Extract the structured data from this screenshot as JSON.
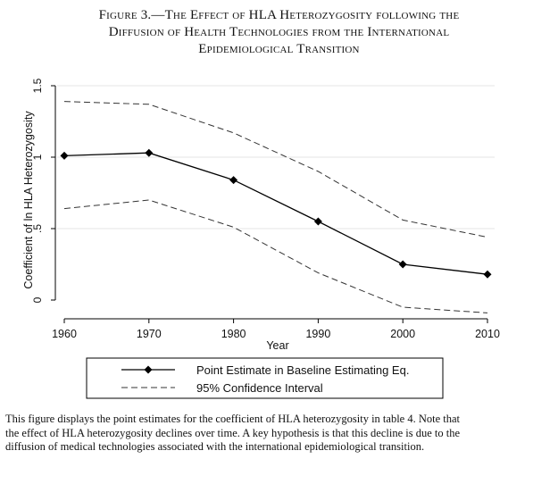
{
  "figure": {
    "title_lines": [
      "Figure 3.—The Effect of HLA Heterozygosity following the",
      "Diffusion of Health Technologies from the International",
      "Epidemiological Transition"
    ],
    "caption_lines": [
      "This figure displays the point estimates for the coefficient of HLA heterozygosity in table 4. Note that",
      "the effect of HLA heterozygosity declines over time. A key hypothesis is that this decline is due to the",
      "diffusion of medical technologies associated with the international epidemiological transition."
    ]
  },
  "chart_data": {
    "type": "line",
    "xlabel": "Year",
    "ylabel": "Coefficient of ln HLA Heterozygosity",
    "x": [
      1960,
      1970,
      1980,
      1990,
      2000,
      2010
    ],
    "x_ticks": [
      "1960",
      "1970",
      "1980",
      "1990",
      "2000",
      "2010"
    ],
    "y_ticks": [
      "0",
      ".5",
      "1",
      "1.5"
    ],
    "y_tick_values": [
      0,
      0.5,
      1,
      1.5
    ],
    "xlim": [
      1960,
      2010
    ],
    "ylim": [
      0,
      1.5
    ],
    "grid": true,
    "legend_position": "bottom",
    "series": [
      {
        "name": "Point Estimate in Baseline Estimating Eq.",
        "style": "solid-diamond",
        "color": "#000000",
        "values": [
          1.01,
          1.03,
          0.84,
          0.55,
          0.25,
          0.18
        ]
      },
      {
        "name": "95% Confidence Interval",
        "style": "dashed",
        "color": "#333333",
        "values": [
          1.39,
          1.37,
          1.17,
          0.9,
          0.56,
          0.44
        ]
      },
      {
        "name": "",
        "style": "dashed",
        "color": "#333333",
        "values": [
          0.64,
          0.7,
          0.51,
          0.19,
          -0.05,
          -0.09
        ]
      }
    ]
  }
}
